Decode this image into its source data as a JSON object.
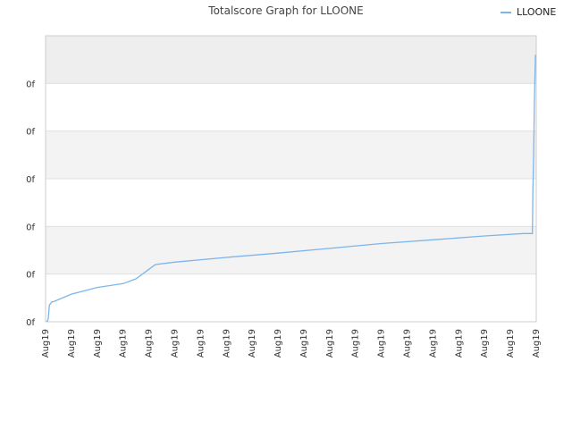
{
  "chart_data": {
    "type": "line",
    "title": "Totalscore Graph for LLOONE",
    "xlabel": "",
    "ylabel": "",
    "legend": {
      "placement": "top-right"
    },
    "grid": true,
    "colors": {
      "series": "#7cb5ec",
      "band_dark": "#eeeeee",
      "band_light": "#f3f3f3",
      "gridline": "#e0e0e0",
      "axis": "#cccccc"
    },
    "y_ticks": [
      "0f",
      "0f",
      "0f",
      "0f",
      "0f",
      "0f"
    ],
    "x_ticks": [
      "Aug19",
      "Aug19",
      "Aug19",
      "Aug19",
      "Aug19",
      "Aug19",
      "Aug19",
      "Aug19",
      "Aug19",
      "Aug19",
      "Aug19",
      "Aug19",
      "Aug19",
      "Aug19",
      "Aug19",
      "Aug19",
      "Aug19",
      "Aug19",
      "Aug19",
      "Aug19"
    ],
    "xlim": [
      0,
      19
    ],
    "ylim": [
      0,
      6
    ],
    "series": [
      {
        "name": "LLOONE",
        "points": [
          [
            0.05,
            0.0
          ],
          [
            0.1,
            0.05
          ],
          [
            0.15,
            0.35
          ],
          [
            0.25,
            0.42
          ],
          [
            0.3,
            0.42
          ],
          [
            1.0,
            0.58
          ],
          [
            2.0,
            0.72
          ],
          [
            3.0,
            0.8
          ],
          [
            3.5,
            0.9
          ],
          [
            4.0,
            1.1
          ],
          [
            4.25,
            1.2
          ],
          [
            5.0,
            1.25
          ],
          [
            7.0,
            1.35
          ],
          [
            9.0,
            1.44
          ],
          [
            11.0,
            1.54
          ],
          [
            13.0,
            1.64
          ],
          [
            15.0,
            1.72
          ],
          [
            17.0,
            1.8
          ],
          [
            18.5,
            1.85
          ],
          [
            18.85,
            1.85
          ],
          [
            18.87,
            2.7
          ],
          [
            18.9,
            3.5
          ],
          [
            18.93,
            4.7
          ],
          [
            18.95,
            5.2
          ],
          [
            18.97,
            5.6
          ]
        ]
      }
    ]
  }
}
